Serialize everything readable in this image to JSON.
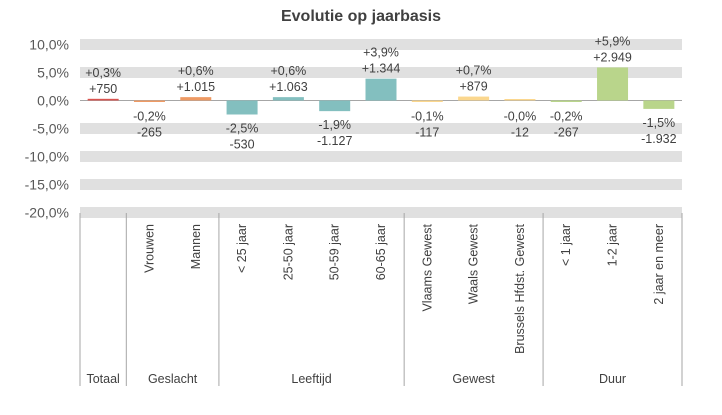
{
  "chart_data": {
    "type": "bar",
    "title": "Evolutie op jaarbasis",
    "ylim": [
      -20,
      10
    ],
    "yticks": [
      "10,0%",
      "5,0%",
      "0,0%",
      "-5,0%",
      "-10,0%",
      "-15,0%",
      "-20,0%"
    ],
    "ytick_values": [
      10,
      5,
      0,
      -5,
      -10,
      -15,
      -20
    ],
    "grid": "banded",
    "categories": [
      "",
      "Vrouwen",
      "Mannen",
      "< 25 jaar",
      "25-50 jaar",
      "50-59 jaar",
      "60-65 jaar",
      "Vlaams Gewest",
      "Waals Gewest",
      "Brussels Hfdst. Gewest",
      "< 1 jaar",
      "1-2 jaar",
      "2 jaar en meer"
    ],
    "values": [
      0.3,
      -0.2,
      0.6,
      -2.5,
      0.6,
      -1.9,
      3.9,
      -0.1,
      0.7,
      -0.0,
      -0.2,
      5.9,
      -1.5
    ],
    "pct_labels": [
      "+0,3%",
      "-0,2%",
      "+0,6%",
      "-2,5%",
      "+0,6%",
      "-1,9%",
      "+3,9%",
      "-0,1%",
      "+0,7%",
      "-0,0%",
      "-0,2%",
      "+5,9%",
      "-1,5%"
    ],
    "abs_labels": [
      "+750",
      "-265",
      "+1.015",
      "-530",
      "+1.063",
      "-1.127",
      "+1.344",
      "-117",
      "+879",
      "-12",
      "-267",
      "+2.949",
      "-1.932"
    ],
    "groups": [
      {
        "label": "Totaal",
        "count": 1,
        "color": "#d9534f"
      },
      {
        "label": "Geslacht",
        "count": 2,
        "color": "#ee9a64"
      },
      {
        "label": "Leeftijd",
        "count": 4,
        "color": "#83bfbf"
      },
      {
        "label": "Gewest",
        "count": 3,
        "color": "#fbd78e"
      },
      {
        "label": "Duur",
        "count": 3,
        "color": "#b9d58b"
      }
    ]
  }
}
